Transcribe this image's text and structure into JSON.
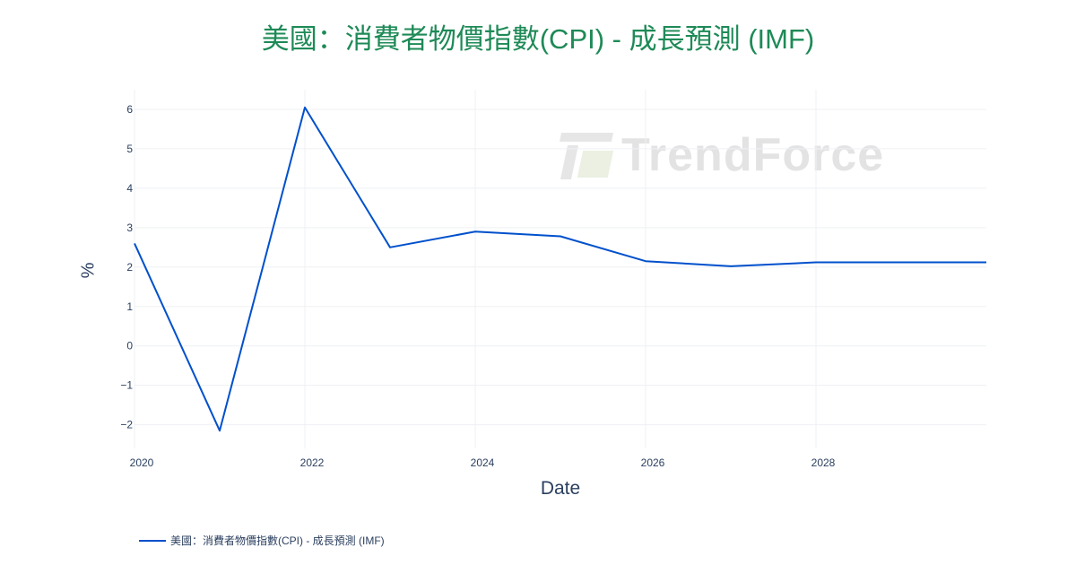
{
  "title": "美國：消費者物價指數(CPI) - 成長預測 (IMF)",
  "watermark": "TrendForce",
  "chart_data": {
    "type": "line",
    "title": "美國：消費者物價指數(CPI) - 成長預測 (IMF)",
    "xlabel": "Date",
    "ylabel": "%",
    "x": [
      2020,
      2021,
      2022,
      2023,
      2024,
      2025,
      2026,
      2027,
      2028,
      2029,
      2030
    ],
    "series": [
      {
        "name": "美國：消費者物價指數(CPI) - 成長預測 (IMF)",
        "color": "#0050cc",
        "values": [
          2.6,
          -2.15,
          6.05,
          2.5,
          2.9,
          2.78,
          2.15,
          2.02,
          2.12,
          2.12,
          2.12
        ]
      }
    ],
    "xlim": [
      2020,
      2030
    ],
    "ylim": [
      -2.6,
      6.5
    ],
    "xticks": [
      2020,
      2022,
      2024,
      2026,
      2028
    ],
    "xtick_labels": [
      "2020",
      "2022",
      "2024",
      "2026",
      "2028"
    ],
    "yticks": [
      -2,
      -1,
      0,
      1,
      2,
      3,
      4,
      5,
      6
    ],
    "ytick_labels": [
      "−2",
      "−1",
      "0",
      "1",
      "2",
      "3",
      "4",
      "5",
      "6"
    ],
    "grid": true,
    "legend_position": "bottom-left"
  }
}
